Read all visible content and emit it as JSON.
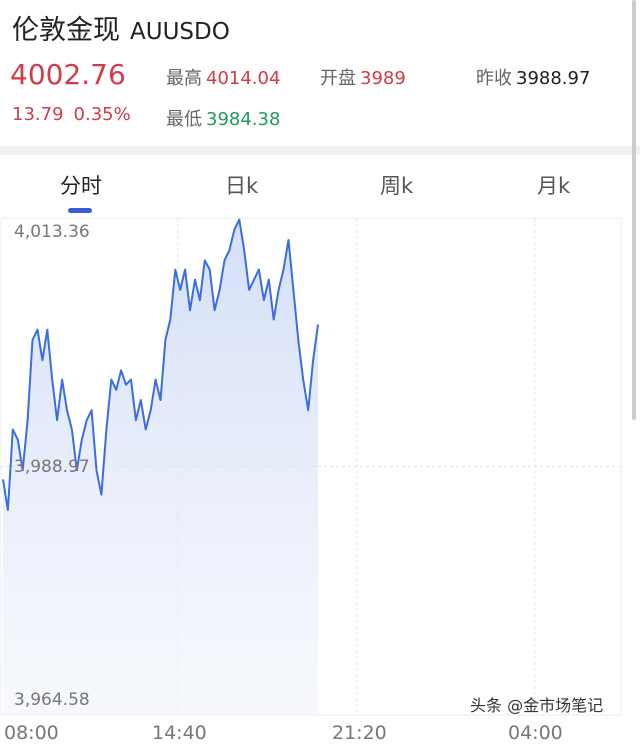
{
  "header": {
    "name": "伦敦金现",
    "code": "AUUSDO",
    "price": "4002.76",
    "change": "13.79",
    "change_pct": "0.35%",
    "high_label": "最高",
    "high": "4014.04",
    "open_label": "开盘",
    "open": "3989",
    "prev_close_label": "昨收",
    "prev_close": "3988.97",
    "low_label": "最低",
    "low": "3984.38"
  },
  "tabs": [
    {
      "label": "分时",
      "active": true
    },
    {
      "label": "日k"
    },
    {
      "label": "周k"
    },
    {
      "label": "月k"
    }
  ],
  "chart_data": {
    "type": "area",
    "y_labels": [
      "4,013.36",
      "3,988.97",
      "3,964.58"
    ],
    "ylim": [
      3964.58,
      4013.36
    ],
    "reference": 3988.97,
    "x_labels": [
      "08:00",
      "14:40",
      "21:20",
      "04:00"
    ],
    "grid": true,
    "line_color": "#3a6ee0",
    "values": [
      3987.7,
      3984.7,
      3992.6,
      3991.6,
      3988.6,
      3993.5,
      4001.4,
      4002.4,
      3999.4,
      4002.4,
      3997.5,
      3993.5,
      3997.5,
      3994.5,
      3992.6,
      3988.6,
      3991.6,
      3993.5,
      3994.5,
      3988.6,
      3986.2,
      3992.6,
      3997.5,
      3996.5,
      3998.4,
      3997.0,
      3997.5,
      3993.5,
      3995.5,
      3992.6,
      3994.5,
      3997.5,
      3995.5,
      4001.4,
      4003.4,
      4008.3,
      4006.3,
      4008.3,
      4004.3,
      4007.3,
      4005.3,
      4009.2,
      4008.3,
      4004.3,
      4006.3,
      4009.2,
      4010.2,
      4012.2,
      4013.2,
      4010.2,
      4006.3,
      4007.3,
      4008.3,
      4005.3,
      4007.3,
      4003.4,
      4006.3,
      4008.3,
      4011.2,
      4006.3,
      4001.4,
      3997.5,
      3994.5,
      3999.4,
      4002.9
    ]
  },
  "watermark": "头条 @金市场笔记"
}
